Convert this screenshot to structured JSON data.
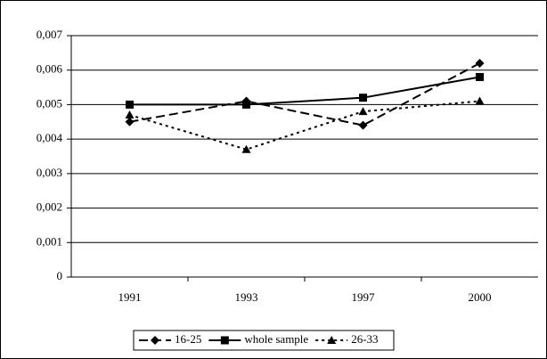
{
  "chart_data": {
    "type": "line",
    "categories": [
      "1991",
      "1993",
      "1997",
      "2000"
    ],
    "series": [
      {
        "name": "16-25",
        "color": "#000000",
        "line_style": "dashed",
        "marker": "diamond",
        "values": [
          0.0045,
          0.0051,
          0.0044,
          0.0062
        ]
      },
      {
        "name": "whole sample",
        "color": "#000000",
        "line_style": "solid",
        "marker": "square",
        "values": [
          0.005,
          0.005,
          0.0052,
          0.0058
        ]
      },
      {
        "name": "26-33",
        "color": "#000000",
        "line_style": "dotted",
        "marker": "triangle",
        "values": [
          0.0047,
          0.0037,
          0.0048,
          0.0051
        ]
      }
    ],
    "ylim": [
      0,
      0.007
    ],
    "yticks": [
      0,
      {
        "value": 0.001,
        "label": "0,001"
      },
      {
        "value": 0.002,
        "label": "0,002"
      },
      {
        "value": 0.003,
        "label": "0,003"
      },
      {
        "value": 0.004,
        "label": "0,004"
      },
      {
        "value": 0.005,
        "label": "0,005"
      },
      {
        "value": 0.006,
        "label": "0,006"
      },
      {
        "value": 0.007,
        "label": "0,007"
      }
    ],
    "grid": true,
    "legend": "bottom"
  }
}
